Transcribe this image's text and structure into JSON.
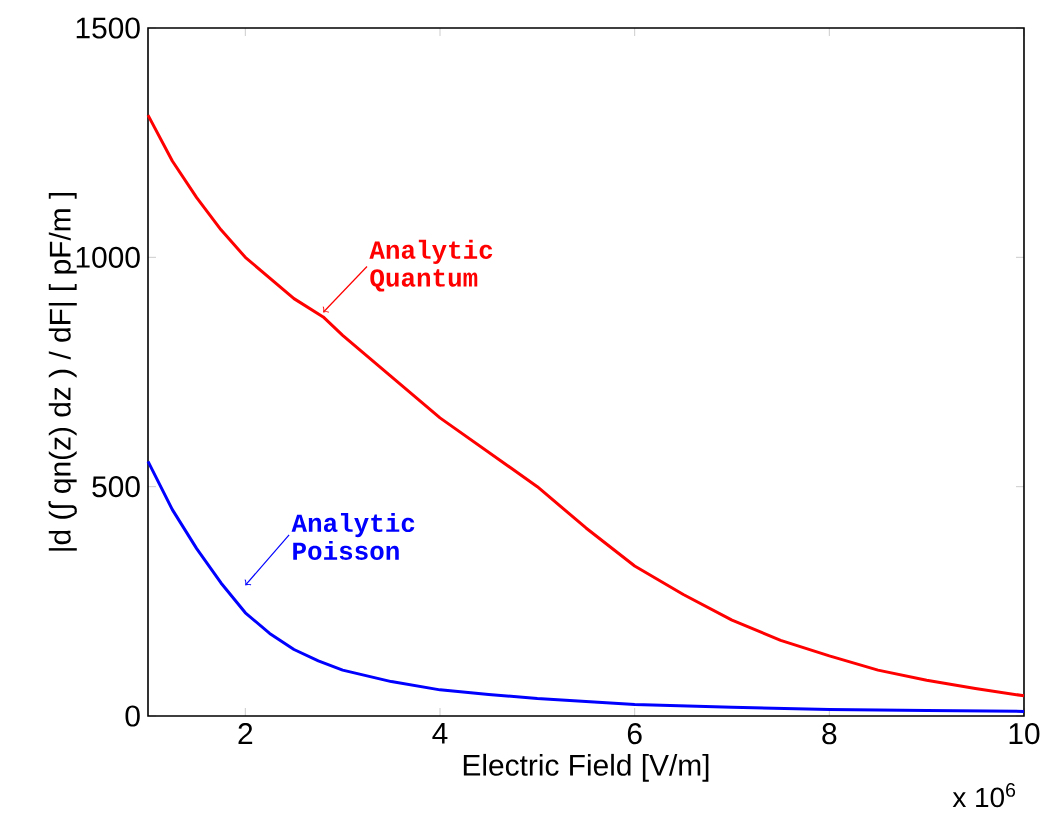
{
  "chart_data": {
    "type": "line",
    "xlabel": "Electric Field [V/m]",
    "ylabel": "|d (∫ qn(z) dz ) / dF|  [ pF/m ]",
    "xlim": [
      1,
      10
    ],
    "ylim": [
      0,
      1500
    ],
    "xticks": [
      2,
      4,
      6,
      8,
      10
    ],
    "yticks": [
      0,
      500,
      1000,
      1500
    ],
    "grid": false,
    "marker": "none",
    "line_style": "solid",
    "series": [
      {
        "color": "#ff0000",
        "x": [
          1,
          1.25,
          1.5,
          1.75,
          2,
          2.5,
          2.8,
          3,
          3.5,
          4,
          4.5,
          5,
          5.5,
          6,
          6.5,
          7,
          7.5,
          8,
          8.5,
          9,
          9.5,
          10
        ],
        "values": [
          1310,
          1210,
          1130,
          1060,
          1000,
          910,
          870,
          830,
          740,
          650,
          575,
          500,
          410,
          327,
          265,
          209,
          165,
          131,
          100,
          78,
          60,
          44
        ]
      },
      {
        "color": "#0000ff",
        "x": [
          1,
          1.25,
          1.5,
          1.75,
          2,
          2.25,
          2.5,
          2.75,
          3,
          3.5,
          4,
          4.5,
          5,
          6,
          7,
          8,
          9,
          10
        ],
        "values": [
          555,
          450,
          365,
          290,
          225,
          180,
          145,
          120,
          100,
          75,
          57,
          47,
          38,
          25,
          19,
          14,
          12,
          10
        ]
      }
    ],
    "annotations": [
      {
        "text": "Analytic Quantum",
        "x": 2.8,
        "y": 880
      },
      {
        "text": "Analytic Poisson",
        "x": 2.0,
        "y": 285
      },
      "x 10$^{6}$"
    ]
  }
}
